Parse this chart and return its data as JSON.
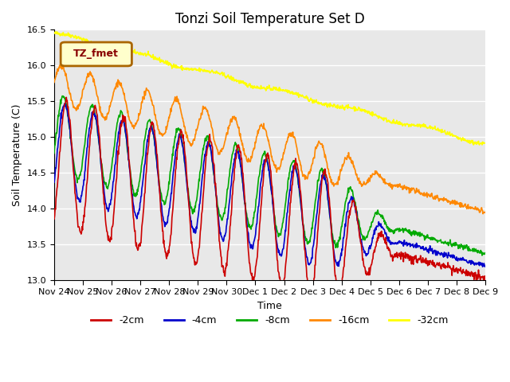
{
  "title": "Tonzi Soil Temperature Set D",
  "xlabel": "Time",
  "ylabel": "Soil Temperature (C)",
  "ylim": [
    13.0,
    16.5
  ],
  "background_color": "#ffffff",
  "plot_bg_color": "#e8e8e8",
  "series_colors": {
    "-2cm": "#cc0000",
    "-4cm": "#0000cc",
    "-8cm": "#00aa00",
    "-16cm": "#ff8800",
    "-32cm": "#ffff00"
  },
  "legend_label": "TZ_fmet",
  "x_tick_labels": [
    "Nov 24",
    "Nov 25",
    "Nov 26",
    "Nov 27",
    "Nov 28",
    "Nov 29",
    "Nov 30",
    "Dec 1",
    "Dec 2",
    "Dec 3",
    "Dec 4",
    "Dec 5",
    "Dec 6",
    "Dec 7",
    "Dec 8",
    "Dec 9"
  ],
  "n_points": 960,
  "title_fontsize": 12,
  "axis_fontsize": 9,
  "tick_fontsize": 8,
  "grid_color": "#ffffff",
  "line_width": 1.2
}
